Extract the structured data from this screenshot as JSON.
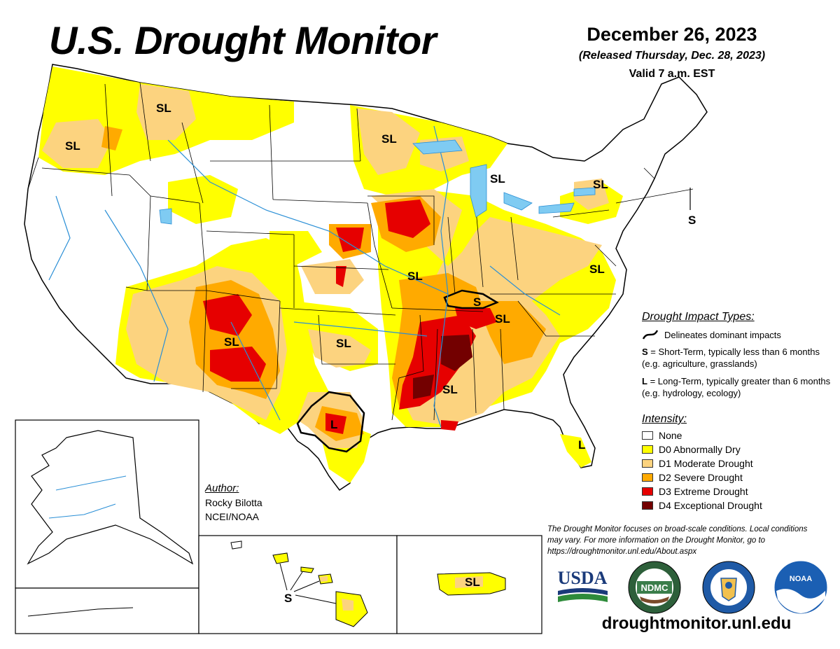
{
  "header": {
    "title": "U.S. Drought Monitor",
    "date": "December 26, 2023",
    "released": "(Released Thursday, Dec. 28, 2023)",
    "valid": "Valid 7 a.m. EST"
  },
  "impact_types": {
    "title": "Drought Impact Types:",
    "delineates": "Delineates dominant impacts",
    "short_key": "S",
    "short_desc": " = Short-Term, typically less than 6 months (e.g. agriculture, grasslands)",
    "long_key": "L",
    "long_desc": " = Long-Term, typically greater than 6 months (e.g. hydrology, ecology)"
  },
  "intensity": {
    "title": "Intensity:",
    "levels": [
      {
        "label": "None",
        "color": "#ffffff"
      },
      {
        "label": "D0 Abnormally Dry",
        "color": "#ffff00"
      },
      {
        "label": "D1 Moderate Drought",
        "color": "#fcd37f"
      },
      {
        "label": "D2 Severe Drought",
        "color": "#ffaa00"
      },
      {
        "label": "D3 Extreme Drought",
        "color": "#e60000"
      },
      {
        "label": "D4 Exceptional Drought",
        "color": "#730000"
      }
    ]
  },
  "author": {
    "title": "Author:",
    "name": "Rocky Bilotta",
    "org": "NCEI/NOAA"
  },
  "disclaimer": "The Drought Monitor focuses on broad-scale conditions. Local conditions may vary. For more information on the Drought Monitor, go to https://droughtmonitor.unl.edu/About.aspx",
  "url": "droughtmonitor.unl.edu",
  "map_labels": {
    "sl": "SL",
    "s": "S",
    "l": "L"
  },
  "logos": {
    "usda": "USDA",
    "ndmc": "NDMC",
    "noaa": "NOAA"
  }
}
